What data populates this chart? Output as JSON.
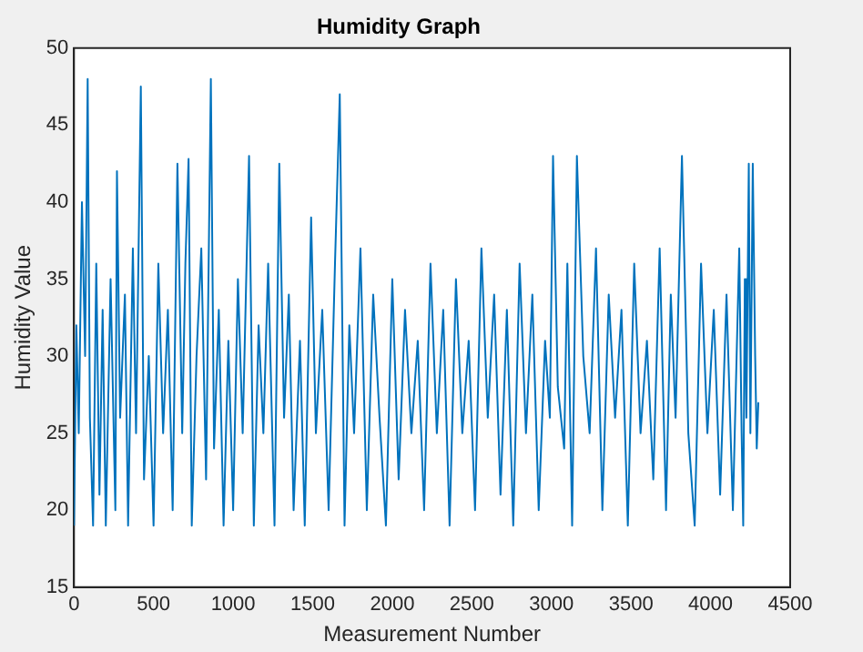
{
  "chart_data": {
    "type": "line",
    "title": "Humidity Graph",
    "xlabel": "Measurement Number",
    "ylabel": "Humidity Value",
    "x": [
      0,
      15,
      30,
      50,
      70,
      86,
      100,
      120,
      140,
      160,
      180,
      200,
      230,
      260,
      270,
      290,
      320,
      340,
      370,
      390,
      420,
      440,
      470,
      500,
      530,
      560,
      590,
      620,
      650,
      680,
      700,
      720,
      740,
      770,
      800,
      830,
      860,
      880,
      910,
      940,
      970,
      1000,
      1030,
      1060,
      1100,
      1130,
      1160,
      1190,
      1220,
      1260,
      1290,
      1320,
      1350,
      1380,
      1420,
      1450,
      1490,
      1520,
      1560,
      1600,
      1640,
      1670,
      1700,
      1730,
      1760,
      1800,
      1840,
      1880,
      1920,
      1960,
      2000,
      2040,
      2080,
      2120,
      2160,
      2200,
      2240,
      2280,
      2320,
      2360,
      2400,
      2440,
      2480,
      2520,
      2560,
      2600,
      2640,
      2680,
      2720,
      2760,
      2800,
      2840,
      2880,
      2920,
      2960,
      2990,
      3010,
      3040,
      3080,
      3100,
      3130,
      3160,
      3200,
      3240,
      3280,
      3320,
      3360,
      3400,
      3440,
      3480,
      3520,
      3560,
      3600,
      3640,
      3680,
      3720,
      3750,
      3780,
      3820,
      3860,
      3900,
      3940,
      3980,
      4020,
      4060,
      4100,
      4140,
      4180,
      4195,
      4205,
      4215,
      4225,
      4240,
      4250,
      4265,
      4280,
      4290,
      4300
    ],
    "series": [
      {
        "color": "#0072bd",
        "values": [
          19,
          32,
          25,
          40,
          30,
          48,
          26,
          19,
          36,
          21,
          33,
          19,
          35,
          20,
          42,
          26,
          34,
          19,
          37,
          25,
          47.5,
          22,
          30,
          19,
          36,
          25,
          33,
          20,
          42.5,
          25,
          36,
          42.8,
          19,
          30,
          37,
          22,
          48,
          24,
          33,
          19,
          31,
          20,
          35,
          25,
          43,
          19,
          32,
          25,
          36,
          19,
          42.5,
          26,
          34,
          20,
          31,
          19,
          39,
          25,
          33,
          20,
          36,
          47,
          19,
          32,
          25,
          37,
          20,
          34,
          26,
          19,
          35,
          22,
          33,
          25,
          31,
          20,
          36,
          25,
          33,
          19,
          35,
          25,
          31,
          20,
          37,
          26,
          34,
          21,
          33,
          19,
          36,
          25,
          34,
          20,
          31,
          26,
          43,
          28,
          24,
          36,
          19,
          43,
          30,
          25,
          37,
          20,
          34,
          26,
          33,
          19,
          36,
          25,
          31,
          22,
          37,
          20,
          34,
          26,
          43,
          25,
          19,
          36,
          25,
          33,
          21,
          34,
          20,
          37,
          25,
          19,
          35,
          26,
          42.5,
          25,
          42.5,
          30,
          24,
          27
        ]
      }
    ],
    "xlim": [
      0,
      4500
    ],
    "xticks": [
      0,
      500,
      1000,
      1500,
      2000,
      2500,
      3000,
      3500,
      4000,
      4500
    ],
    "ylim": [
      15,
      50
    ],
    "yticks": [
      15,
      20,
      25,
      30,
      35,
      40,
      45,
      50
    ],
    "grid": false,
    "legend": false
  }
}
